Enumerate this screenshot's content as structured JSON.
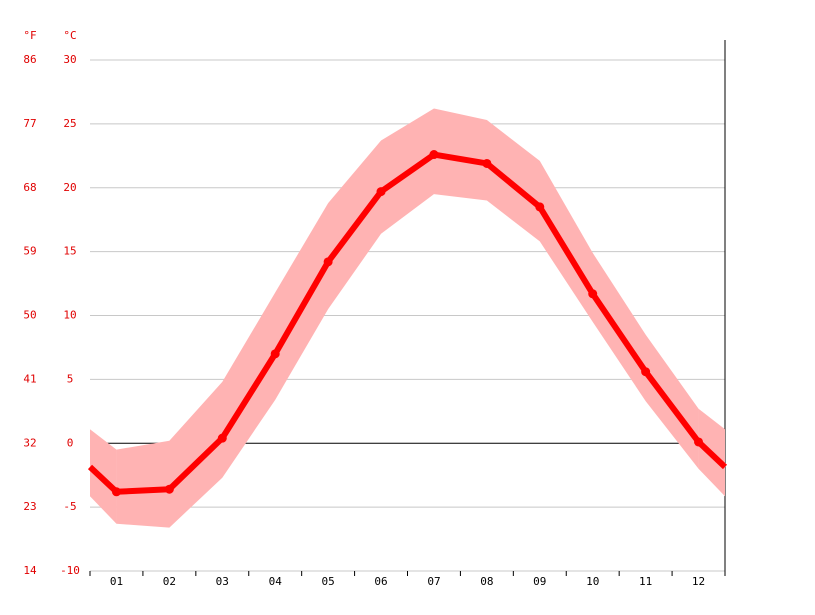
{
  "chart_data": {
    "type": "line",
    "categories": [
      "01",
      "02",
      "03",
      "04",
      "05",
      "06",
      "07",
      "08",
      "09",
      "10",
      "11",
      "12"
    ],
    "values": [
      -3.8,
      -3.6,
      0.4,
      7.0,
      14.2,
      19.7,
      22.6,
      21.9,
      18.5,
      11.7,
      5.6,
      0.1
    ],
    "max": [
      -0.5,
      0.2,
      4.8,
      11.8,
      18.8,
      23.7,
      26.2,
      25.3,
      22.1,
      14.9,
      8.5,
      2.7
    ],
    "min": [
      -6.3,
      -6.6,
      -2.7,
      3.4,
      10.5,
      16.4,
      19.5,
      19.0,
      15.8,
      9.5,
      3.3,
      -2.0
    ],
    "color": "#ff0000",
    "band_color": "#ffb3b3",
    "y_label": "°C",
    "y2_label": "°F",
    "ylim": [
      -10,
      30
    ],
    "yticks": [
      -10,
      -5,
      0,
      5,
      10,
      15,
      20,
      25,
      30
    ],
    "y2lim": [
      14,
      86
    ],
    "y2ticks": [
      14,
      23,
      32,
      41,
      50,
      59,
      68,
      77,
      86
    ],
    "grid": true
  }
}
